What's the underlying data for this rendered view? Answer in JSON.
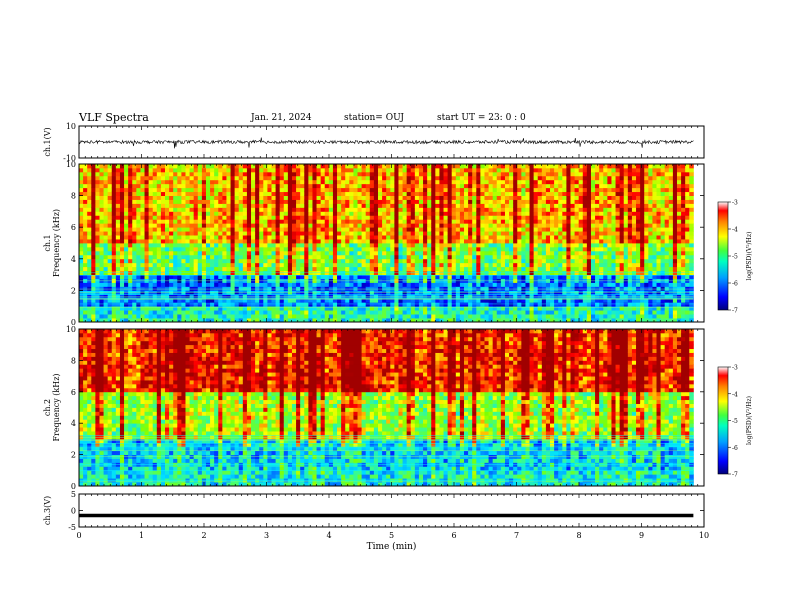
{
  "header": {
    "title": "VLF Spectra",
    "date": "Jan. 21, 2024",
    "station": "station= OUJ",
    "start": "start  UT  =   23: 0  : 0"
  },
  "colors": {
    "colormap": [
      "#00007a",
      "#0000ff",
      "#0080ff",
      "#00e0ff",
      "#40ff80",
      "#80ff00",
      "#ffff00",
      "#ff8000",
      "#ff0000",
      "#a00000"
    ]
  },
  "chart_data": [
    {
      "type": "line",
      "ylabel": "ch.1(V)",
      "ylim": [
        -10,
        10
      ],
      "yticks": [
        10,
        -10
      ],
      "xlim": [
        0,
        10
      ],
      "baseline_value": 0,
      "description_values": {
        "noise_amplitude": 1
      }
    },
    {
      "type": "heatmap",
      "ylabel_line1": "ch.1",
      "ylabel_line2": "Frequency  (kHz)",
      "ylim": [
        0,
        10
      ],
      "yticks": [
        0,
        2,
        4,
        6,
        8,
        10
      ],
      "xlim": [
        0,
        9.83
      ],
      "colorbar": {
        "label": "log(PSD)(V²/Hz)",
        "range": [
          -7,
          -3
        ],
        "ticks": [
          -3,
          -4,
          -5,
          -6,
          -7
        ]
      },
      "profile": {
        "0-1kHz": -5.5,
        "1-3kHz": -6.2,
        "3-5kHz": -5.0,
        "5-10kHz": -4.2
      }
    },
    {
      "type": "heatmap",
      "ylabel_line1": "ch.2",
      "ylabel_line2": "Frequency  (kHz)",
      "ylim": [
        0,
        10
      ],
      "yticks": [
        0,
        2,
        4,
        6,
        8,
        10
      ],
      "xlim": [
        0,
        9.83
      ],
      "colorbar": {
        "label": "log(PSD)(V²/Hz)",
        "range": [
          -7,
          -3
        ],
        "ticks": [
          -3,
          -4,
          -5,
          -6,
          -7
        ]
      },
      "profile": {
        "0-1kHz": -5.6,
        "1-3kHz": -5.8,
        "3-6kHz": -4.8,
        "6-10kHz": -3.6
      }
    },
    {
      "type": "line",
      "ylabel": "ch.3(V)",
      "ylim": [
        -5,
        5
      ],
      "yticks": [
        5,
        0,
        -5
      ],
      "xlim": [
        0,
        10
      ],
      "values_constant": -1.5
    }
  ],
  "xaxis": {
    "label": "Time  (min)",
    "ticks": [
      0,
      1,
      2,
      3,
      4,
      5,
      6,
      7,
      8,
      9,
      10
    ],
    "xlim": [
      0,
      10
    ]
  }
}
